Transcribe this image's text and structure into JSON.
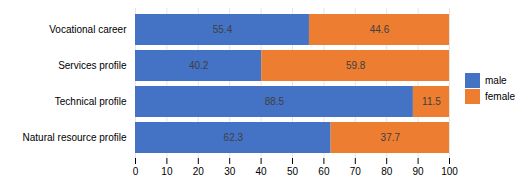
{
  "chart_data": {
    "type": "bar",
    "orientation": "horizontal",
    "stacked": true,
    "categories": [
      "Natural resource profile",
      "Technical profile",
      "Services profile",
      "Vocational career"
    ],
    "series": [
      {
        "name": "male",
        "color": "#4472C4",
        "values": [
          62.3,
          88.5,
          40.2,
          55.4
        ]
      },
      {
        "name": "female",
        "color": "#ED7D31",
        "values": [
          37.7,
          11.5,
          59.8,
          44.6
        ]
      }
    ],
    "xlim": [
      0,
      100
    ],
    "xticks": [
      0,
      10,
      20,
      30,
      40,
      50,
      60,
      70,
      80,
      90,
      100
    ],
    "grid": true,
    "data_labels": true,
    "legend": "right"
  }
}
